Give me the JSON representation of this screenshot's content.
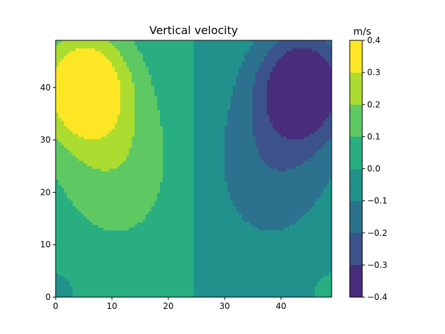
{
  "chart_data": {
    "type": "heatmap",
    "subtype": "filled-contour",
    "title": "Vertical velocity",
    "xlabel": "",
    "ylabel": "",
    "xlim": [
      0,
      49
    ],
    "ylim": [
      0,
      49
    ],
    "x_ticks": [
      0,
      10,
      20,
      30,
      40
    ],
    "y_ticks": [
      0,
      10,
      20,
      30,
      40
    ],
    "grid": false,
    "colorbar": {
      "label": "m/s",
      "levels": [
        -0.4,
        -0.3,
        -0.2,
        -0.1,
        0.0,
        0.1,
        0.2,
        0.3,
        0.4
      ],
      "tick_labels": [
        "−0.4",
        "−0.3",
        "−0.2",
        "−0.1",
        "0.0",
        "0.1",
        "0.2",
        "0.3",
        "0.4"
      ],
      "colors": [
        "#472d7b",
        "#3b528b",
        "#2c728e",
        "#21918c",
        "#28ae80",
        "#5ec962",
        "#addc30",
        "#fde725"
      ]
    },
    "field_features": [
      {
        "name": "positive-cell",
        "center": [
          5,
          40
        ],
        "peak_band": [
          0.3,
          0.4
        ]
      },
      {
        "name": "negative-cell",
        "center": [
          44,
          40
        ],
        "peak_band": [
          -0.4,
          -0.3
        ]
      },
      {
        "name": "zero-line",
        "x": 24.5
      }
    ]
  }
}
